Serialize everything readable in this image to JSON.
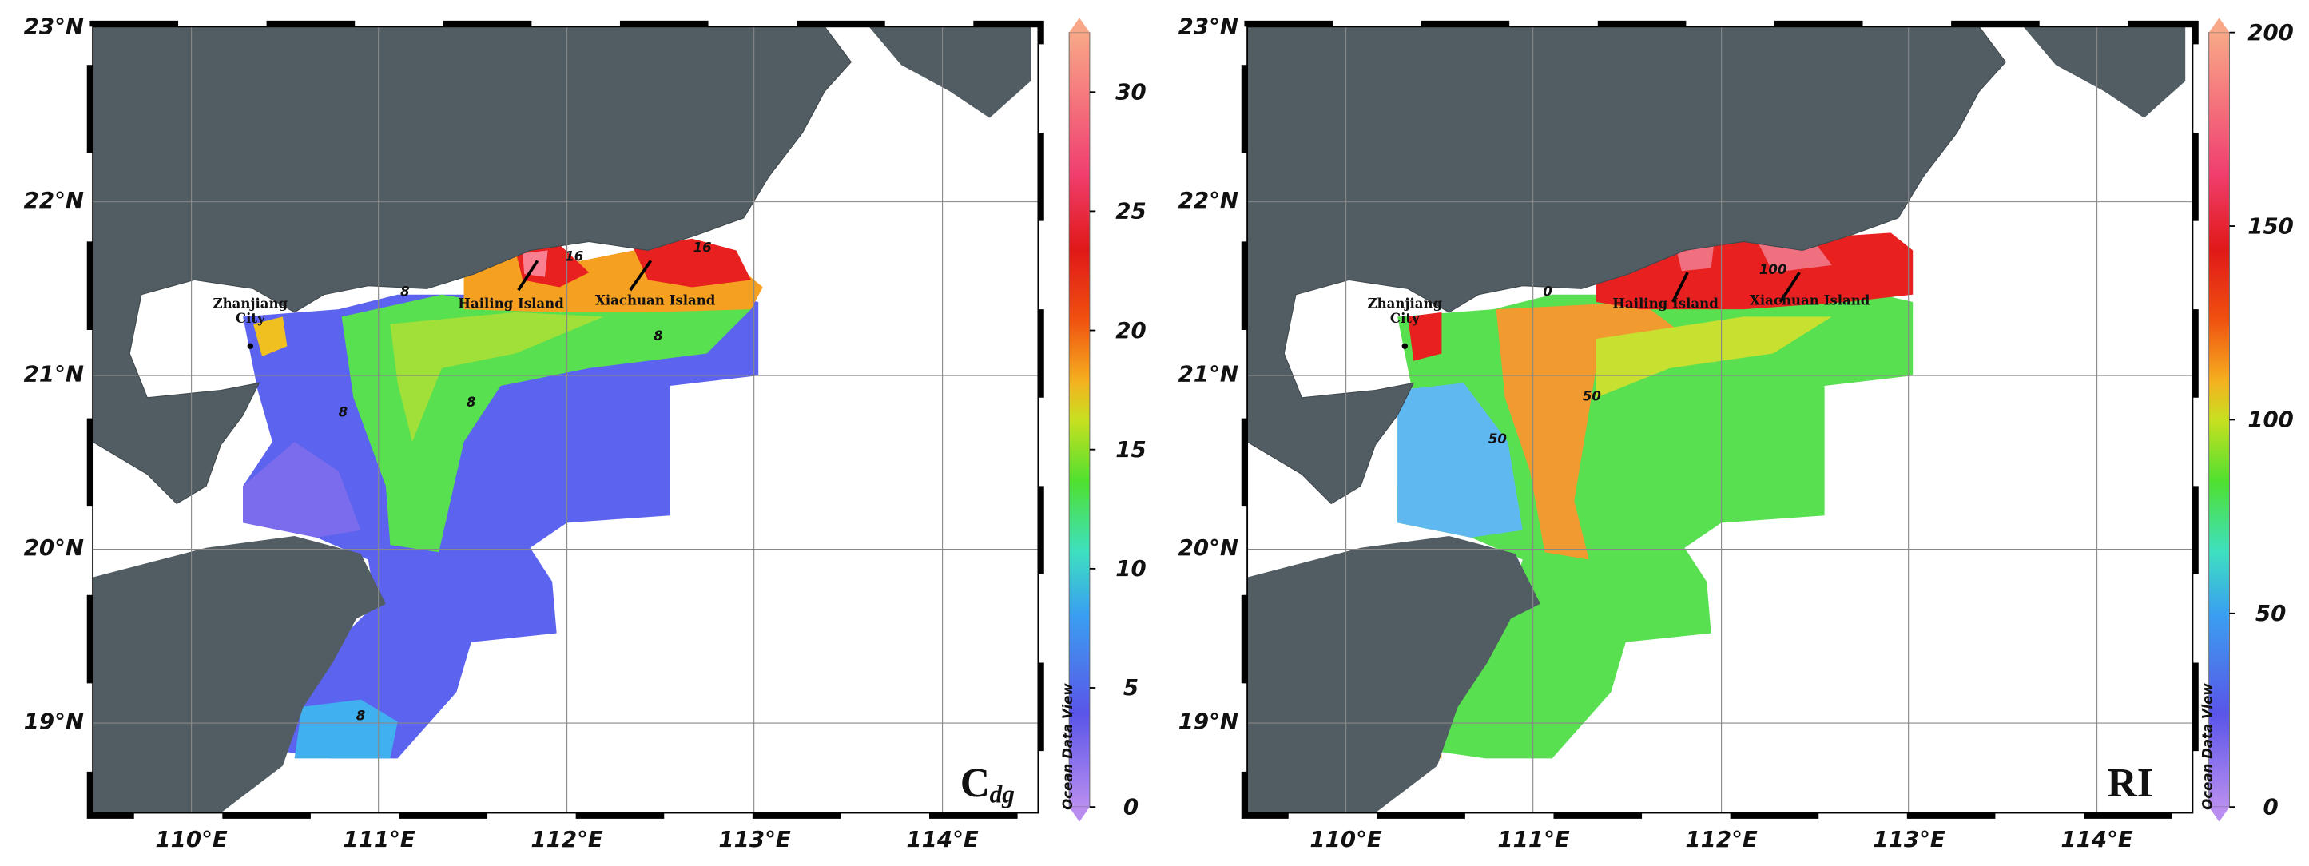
{
  "panels": [
    {
      "lat_labels": [
        "23°N",
        "22°N",
        "21°N",
        "20°N",
        "19°N"
      ],
      "lon_labels": [
        "110°E",
        "111°E",
        "112°E",
        "113°E",
        "114°E"
      ],
      "colorbar_ticks": [
        0,
        5,
        10,
        15,
        20,
        25,
        30
      ],
      "colorbar_range": [
        0,
        32.5
      ],
      "contour_labels": [
        "8",
        "8",
        "8",
        "8",
        "16",
        "16",
        "8"
      ],
      "places": [
        "Zhanjiang",
        "City",
        "Hailing Island",
        "Xiachuan Island"
      ],
      "panel_label": "C",
      "panel_label_sub": "dg",
      "credit": "Ocean Data View"
    },
    {
      "lat_labels": [
        "23°N",
        "22°N",
        "21°N",
        "20°N",
        "19°N"
      ],
      "lon_labels": [
        "110°E",
        "111°E",
        "112°E",
        "113°E",
        "114°E"
      ],
      "colorbar_ticks": [
        0,
        50,
        100,
        150,
        200
      ],
      "colorbar_range": [
        0,
        200
      ],
      "contour_labels": [
        "0",
        "50",
        "50",
        "100"
      ],
      "places": [
        "Zhanjiang",
        "City",
        "Hailing Island",
        "Xiachuan Island"
      ],
      "panel_label": "RI",
      "credit": "Ocean Data View"
    }
  ]
}
